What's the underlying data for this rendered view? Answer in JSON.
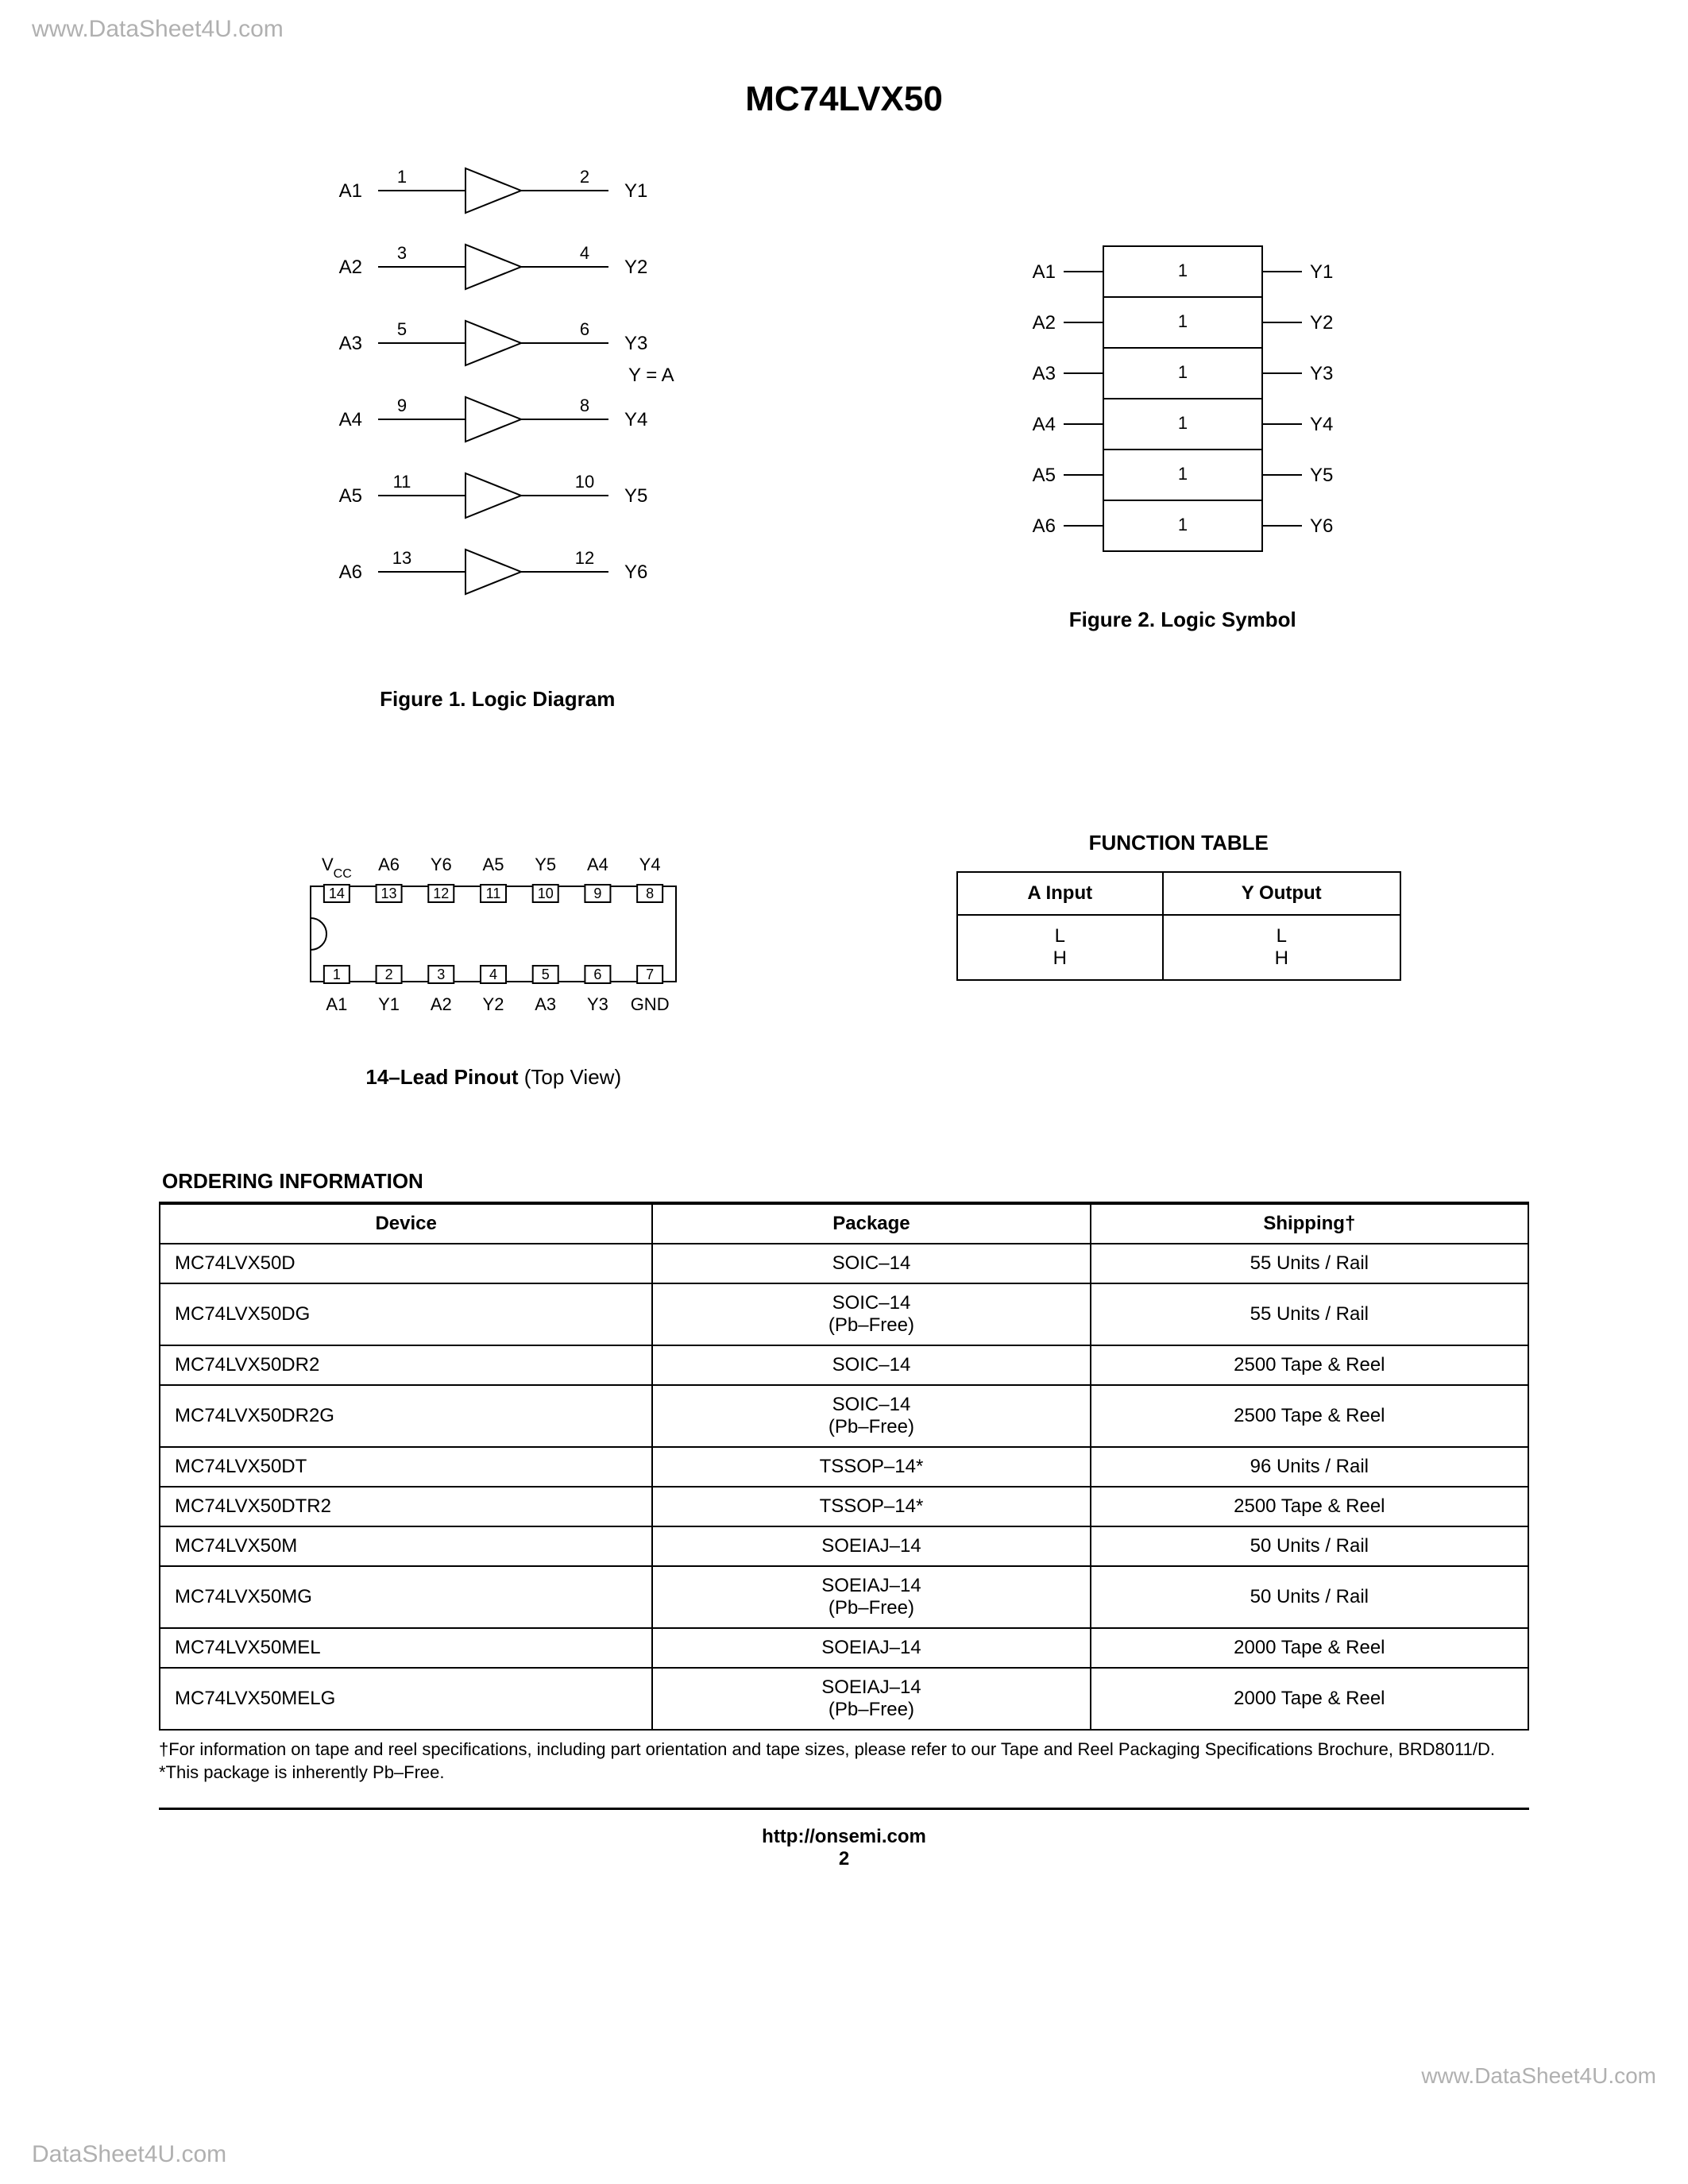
{
  "watermarks": {
    "top": "www.DataSheet4U.com",
    "right": "www.DataSheet4U.com",
    "bottom": "DataSheet4U.com"
  },
  "title": "MC74LVX50",
  "logic_diagram": {
    "caption": "Figure 1. Logic Diagram",
    "equation": "Y = A",
    "gates": [
      {
        "in_label": "A1",
        "in_pin": "1",
        "out_pin": "2",
        "out_label": "Y1"
      },
      {
        "in_label": "A2",
        "in_pin": "3",
        "out_pin": "4",
        "out_label": "Y2"
      },
      {
        "in_label": "A3",
        "in_pin": "5",
        "out_pin": "6",
        "out_label": "Y3"
      },
      {
        "in_label": "A4",
        "in_pin": "9",
        "out_pin": "8",
        "out_label": "Y4"
      },
      {
        "in_label": "A5",
        "in_pin": "11",
        "out_pin": "10",
        "out_label": "Y5"
      },
      {
        "in_label": "A6",
        "in_pin": "13",
        "out_pin": "12",
        "out_label": "Y6"
      }
    ]
  },
  "logic_symbol": {
    "caption": "Figure 2. Logic Symbol",
    "rows": [
      {
        "in": "A1",
        "tag": "1",
        "out": "Y1"
      },
      {
        "in": "A2",
        "tag": "1",
        "out": "Y2"
      },
      {
        "in": "A3",
        "tag": "1",
        "out": "Y3"
      },
      {
        "in": "A4",
        "tag": "1",
        "out": "Y4"
      },
      {
        "in": "A5",
        "tag": "1",
        "out": "Y5"
      },
      {
        "in": "A6",
        "tag": "1",
        "out": "Y6"
      }
    ]
  },
  "pinout": {
    "caption_bold": "14–Lead Pinout",
    "caption_rest": " (Top View)",
    "top_labels": [
      "VCC",
      "A6",
      "Y6",
      "A5",
      "Y5",
      "A4",
      "Y4"
    ],
    "top_pins": [
      "14",
      "13",
      "12",
      "11",
      "10",
      "9",
      "8"
    ],
    "bottom_pins": [
      "1",
      "2",
      "3",
      "4",
      "5",
      "6",
      "7"
    ],
    "bottom_labels": [
      "A1",
      "Y1",
      "A2",
      "Y2",
      "A3",
      "Y3",
      "GND"
    ]
  },
  "function_table": {
    "title": "FUNCTION TABLE",
    "headers": [
      "A Input",
      "Y Output"
    ],
    "rows": [
      [
        "L",
        "L"
      ],
      [
        "H",
        "H"
      ]
    ]
  },
  "ordering": {
    "title": "ORDERING INFORMATION",
    "headers": [
      "Device",
      "Package",
      "Shipping†"
    ],
    "rows": [
      {
        "device": "MC74LVX50D",
        "package": "SOIC–14",
        "shipping": "55 Units / Rail"
      },
      {
        "device": "MC74LVX50DG",
        "package": "SOIC–14\n(Pb–Free)",
        "shipping": "55 Units / Rail"
      },
      {
        "device": "MC74LVX50DR2",
        "package": "SOIC–14",
        "shipping": "2500 Tape & Reel"
      },
      {
        "device": "MC74LVX50DR2G",
        "package": "SOIC–14\n(Pb–Free)",
        "shipping": "2500 Tape & Reel"
      },
      {
        "device": "MC74LVX50DT",
        "package": "TSSOP–14*",
        "shipping": "96 Units / Rail"
      },
      {
        "device": "MC74LVX50DTR2",
        "package": "TSSOP–14*",
        "shipping": "2500 Tape & Reel"
      },
      {
        "device": "MC74LVX50M",
        "package": "SOEIAJ–14",
        "shipping": "50 Units / Rail"
      },
      {
        "device": "MC74LVX50MG",
        "package": "SOEIAJ–14\n(Pb–Free)",
        "shipping": "50 Units / Rail"
      },
      {
        "device": "MC74LVX50MEL",
        "package": "SOEIAJ–14",
        "shipping": "2000 Tape & Reel"
      },
      {
        "device": "MC74LVX50MELG",
        "package": "SOEIAJ–14\n(Pb–Free)",
        "shipping": "2000 Tape & Reel"
      }
    ],
    "footnote1": "†For information on tape and reel specifications, including part orientation and tape sizes, please refer to our Tape and Reel Packaging Specifications Brochure, BRD8011/D.",
    "footnote2": "*This package is inherently Pb–Free."
  },
  "footer": {
    "url": "http://onsemi.com",
    "page": "2"
  },
  "style": {
    "line_color": "#000000",
    "stroke_width": 2
  }
}
